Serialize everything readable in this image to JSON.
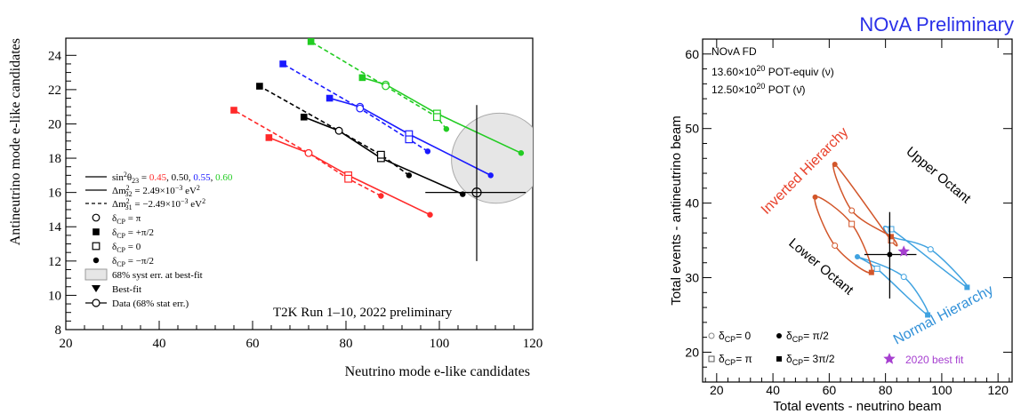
{
  "chart_data": [
    {
      "type": "line",
      "xlabel": "Neutrino mode e-like candidates",
      "ylabel": "Antineutrino mode e-like candidates",
      "xlim": [
        20,
        120
      ],
      "ylim": [
        8,
        25
      ],
      "xticks": [
        "20",
        "40",
        "60",
        "80",
        "100",
        "120"
      ],
      "yticks": [
        "8",
        "10",
        "12",
        "14",
        "16",
        "18",
        "20",
        "22",
        "24"
      ],
      "annotation": "T2K Run 1–10, 2022 preliminary",
      "colors": {
        "0.45": "#ff2a2a",
        "0.50": "#000000",
        "0.55": "#1a1aff",
        "0.60": "#22cc22"
      },
      "legend": {
        "sin_prefix": "sin",
        "sin_sup": "2",
        "sin_theta": "θ",
        "sin_sub": "23",
        "sin_eq": " = ",
        "sin_values": [
          "0.45",
          "0.50",
          "0.55",
          "0.60"
        ],
        "nh_label": "Δm",
        "nh_sup": "2",
        "nh_sub": "32",
        "nh_value": " = 2.49×10",
        "nh_exp": "−3",
        "nh_unit": " eV",
        "nh_unit_sup": "2",
        "ih_label": "Δm",
        "ih_sup": "2",
        "ih_sub": "31",
        "ih_value": " = −2.49×10",
        "ih_exp": "−3",
        "ih_unit": " eV",
        "ih_unit_sup": "2",
        "delta": "δ",
        "cp": "CP",
        "d_pi": " = π",
        "d_plus": " = +π/2",
        "d_zero": " = 0",
        "d_minus": " = −π/2",
        "syst": "68% syst err. at best-fit",
        "bestfit": "Best-fit",
        "data": "Data (68% stat err.)"
      },
      "series": [
        {
          "theta": "0.45",
          "hierarchy": "NH",
          "points": {
            "minus": [
              98,
              14.7
            ],
            "zero": [
              80.5,
              17.0
            ],
            "pi": [
              72,
              18.3
            ],
            "plus": [
              63.5,
              19.2
            ]
          }
        },
        {
          "theta": "0.45",
          "hierarchy": "IH",
          "points": {
            "minus": [
              87.5,
              15.8
            ],
            "zero": [
              80.5,
              16.8
            ],
            "pi": [
              72,
              18.3
            ],
            "plus": [
              56,
              20.8
            ]
          }
        },
        {
          "theta": "0.50",
          "hierarchy": "NH",
          "points": {
            "minus": [
              105,
              15.9
            ],
            "zero": [
              87.5,
              18.0
            ],
            "pi": [
              78.5,
              19.6
            ],
            "plus": [
              71,
              20.4
            ]
          }
        },
        {
          "theta": "0.50",
          "hierarchy": "IH",
          "points": {
            "minus": [
              93.5,
              17.0
            ],
            "zero": [
              87.5,
              18.2
            ],
            "pi": [
              78.5,
              19.6
            ],
            "plus": [
              61.5,
              22.2
            ]
          }
        },
        {
          "theta": "0.55",
          "hierarchy": "NH",
          "points": {
            "minus": [
              111,
              17.0
            ],
            "zero": [
              93.5,
              19.4
            ],
            "pi": [
              83,
              21.0
            ],
            "plus": [
              76.5,
              21.5
            ]
          }
        },
        {
          "theta": "0.55",
          "hierarchy": "IH",
          "points": {
            "minus": [
              97.5,
              18.4
            ],
            "zero": [
              93.5,
              19.1
            ],
            "pi": [
              83,
              20.9
            ],
            "plus": [
              66.5,
              23.5
            ]
          }
        },
        {
          "theta": "0.60",
          "hierarchy": "NH",
          "points": {
            "minus": [
              117.5,
              18.3
            ],
            "zero": [
              99.5,
              20.6
            ],
            "pi": [
              88.5,
              22.3
            ],
            "plus": [
              83.5,
              22.7
            ]
          }
        },
        {
          "theta": "0.60",
          "hierarchy": "IH",
          "points": {
            "minus": [
              101.5,
              19.7
            ],
            "zero": [
              99.5,
              20.4
            ],
            "pi": [
              88.5,
              22.2
            ],
            "plus": [
              72.5,
              24.8
            ]
          }
        }
      ],
      "data_point": {
        "x": 108,
        "y": 16.0,
        "xerr": [
          97,
          118.5
        ],
        "yerr": [
          12.0,
          21.1
        ]
      },
      "syst_ellipse": {
        "cx": 112.5,
        "cy": 18.0,
        "rx": 10,
        "ry": 2.6
      }
    },
    {
      "type": "scatter",
      "title": "NOvA Preliminary",
      "xlabel": "Total events - neutrino beam",
      "ylabel": "Total events - antineutrino beam",
      "xlim": [
        15,
        125
      ],
      "ylim": [
        16,
        62
      ],
      "xticks": [
        "20",
        "40",
        "60",
        "80",
        "100",
        "120"
      ],
      "yticks": [
        "20",
        "30",
        "40",
        "50",
        "60"
      ],
      "info": {
        "line1": "NOvA FD",
        "line2_pre": "13.60×10",
        "line2_exp": "20",
        "line2_post": " POT-equiv (ν)",
        "line3_pre": "12.50×10",
        "line3_exp": "20",
        "line3_post": " POT (ν̄)"
      },
      "labels": {
        "ih": "Inverted Hierarchy",
        "nh": "Normal Hierarchy",
        "uo": "Upper Octant",
        "lo": "Lower Octant"
      },
      "legend": {
        "delta": "δ",
        "cp": "CP",
        "d0": "= 0",
        "dpi": "= π",
        "dhalf": "= π/2",
        "d3half": "= 3π/2",
        "bestfit": "2020 best fit"
      },
      "colors": {
        "ih": "#d2562a",
        "nh": "#3fa2e0",
        "bestfit": "#a63fd0"
      },
      "ih_points": {
        "uo": {
          "d0": [
            68,
            39
          ],
          "dpi": [
            82,
            35
          ],
          "dhalf": [
            62,
            45.2
          ],
          "d3half": [
            82,
            35.5
          ]
        },
        "lo": {
          "d0": [
            62,
            34.3
          ],
          "dpi": [
            68,
            37.2
          ],
          "dhalf": [
            55,
            40.8
          ],
          "d3half": [
            75,
            30.7
          ]
        }
      },
      "nh_points": {
        "uo": {
          "d0": [
            96,
            33.8
          ],
          "dpi": [
            82,
            36.5
          ],
          "dhalf": [
            82,
            35.5
          ],
          "d3half": [
            109,
            28.7
          ]
        },
        "lo": {
          "d0": [
            86.5,
            30.1
          ],
          "dpi": [
            77,
            31.2
          ],
          "dhalf": [
            70,
            32.8
          ],
          "d3half": [
            95,
            25.0
          ]
        }
      },
      "data_point": {
        "x": 81.5,
        "y": 33.1,
        "xerr": [
          72.5,
          91
        ],
        "yerr": [
          27.2,
          38.8
        ]
      },
      "bestfit": [
        86.5,
        33.5
      ]
    }
  ]
}
